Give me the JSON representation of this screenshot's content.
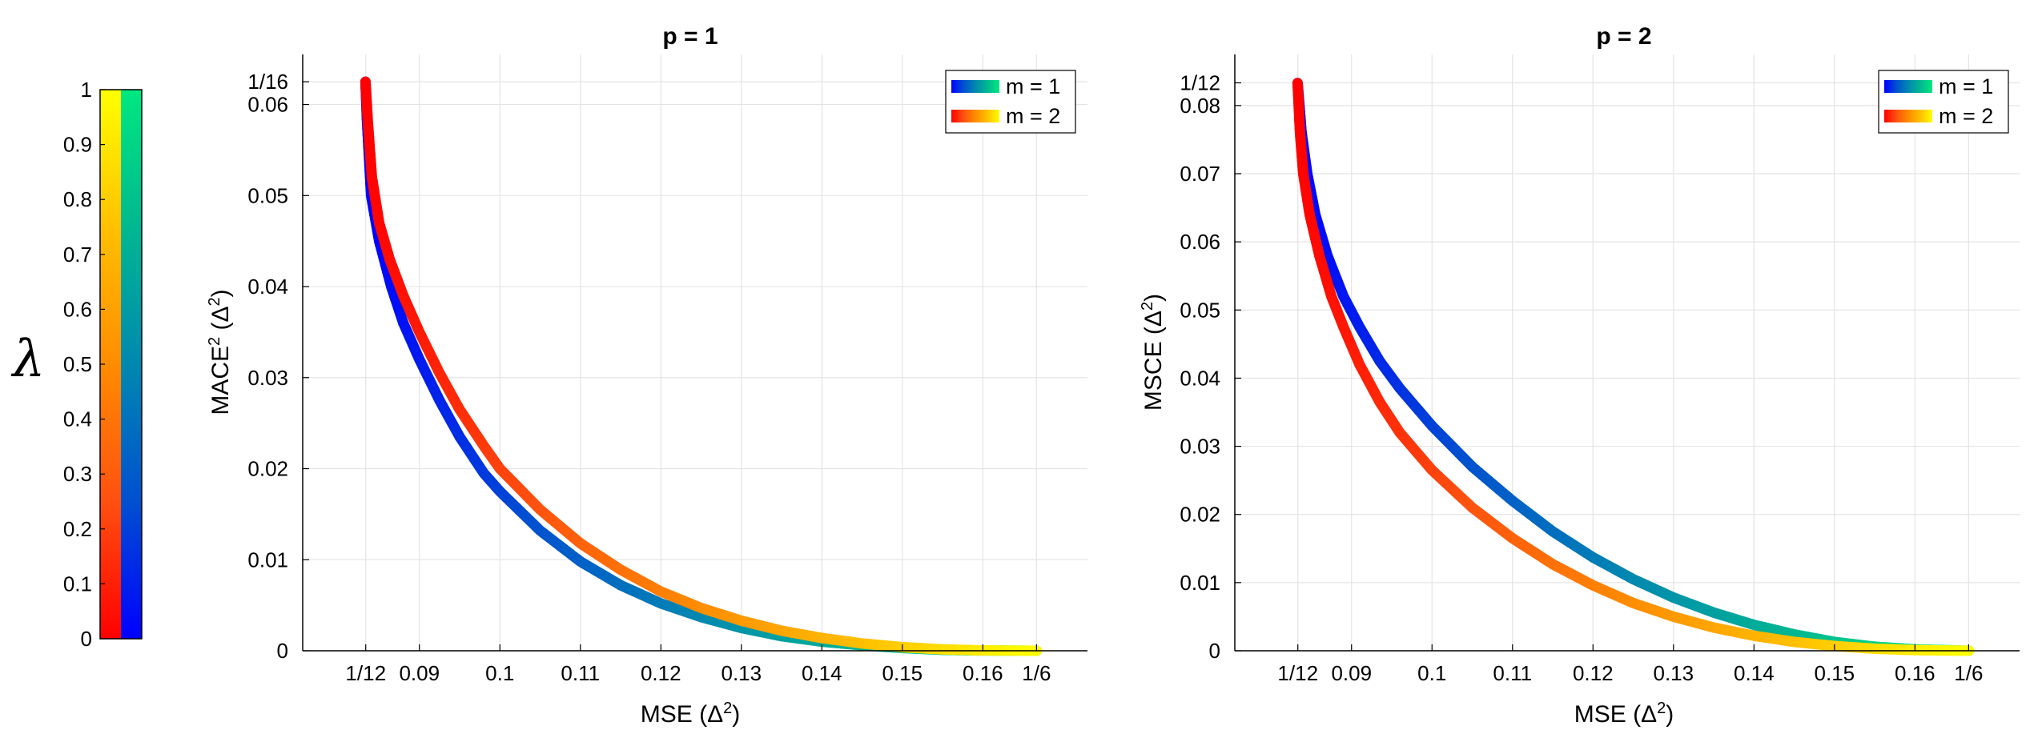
{
  "colorbar": {
    "label": "λ",
    "ticks": [
      "0",
      "0.1",
      "0.2",
      "0.3",
      "0.4",
      "0.5",
      "0.6",
      "0.7",
      "0.8",
      "0.9",
      "1"
    ],
    "colormaps": {
      "m1": [
        "#0000ff",
        "#0050d0",
        "#0088b0",
        "#00b890",
        "#00e880"
      ],
      "m2": [
        "#ff0000",
        "#ff5010",
        "#ff8c00",
        "#ffc000",
        "#ffff00"
      ]
    }
  },
  "chart_data": [
    {
      "type": "line",
      "title": "p = 1",
      "xlabel": "MSE (Δ²)",
      "ylabel": "MACE² (Δ²)",
      "xlim": [
        0.0755,
        0.173
      ],
      "ylim": [
        0,
        0.0655
      ],
      "xticks": [
        {
          "v": 0.083333,
          "label": "1/12"
        },
        {
          "v": 0.09,
          "label": "0.09"
        },
        {
          "v": 0.1,
          "label": "0.1"
        },
        {
          "v": 0.11,
          "label": "0.11"
        },
        {
          "v": 0.12,
          "label": "0.12"
        },
        {
          "v": 0.13,
          "label": "0.13"
        },
        {
          "v": 0.14,
          "label": "0.14"
        },
        {
          "v": 0.15,
          "label": "0.15"
        },
        {
          "v": 0.16,
          "label": "0.16"
        },
        {
          "v": 0.166667,
          "label": "1/6"
        }
      ],
      "yticks": [
        {
          "v": 0,
          "label": "0"
        },
        {
          "v": 0.01,
          "label": "0.01"
        },
        {
          "v": 0.02,
          "label": "0.02"
        },
        {
          "v": 0.03,
          "label": "0.03"
        },
        {
          "v": 0.04,
          "label": "0.04"
        },
        {
          "v": 0.05,
          "label": "0.05"
        },
        {
          "v": 0.06,
          "label": "0.06"
        },
        {
          "v": 0.0625,
          "label": "1/16"
        }
      ],
      "legend": {
        "position": "top-right",
        "entries": [
          "m = 1",
          "m = 2"
        ]
      },
      "series": [
        {
          "name": "m = 1",
          "colormap": "m1",
          "x": [
            0.0833,
            0.0835,
            0.084,
            0.085,
            0.0865,
            0.088,
            0.09,
            0.0925,
            0.095,
            0.098,
            0.1,
            0.105,
            0.11,
            0.115,
            0.12,
            0.125,
            0.13,
            0.135,
            0.14,
            0.145,
            0.15,
            0.155,
            0.16,
            0.1667
          ],
          "y": [
            0.0625,
            0.058,
            0.05,
            0.045,
            0.04,
            0.036,
            0.032,
            0.0275,
            0.0235,
            0.0195,
            0.0175,
            0.0132,
            0.0098,
            0.0072,
            0.0052,
            0.0037,
            0.0025,
            0.0016,
            0.001,
            0.0006,
            0.0003,
            0.0001,
            3e-05,
            0.0
          ]
        },
        {
          "name": "m = 2",
          "colormap": "m2",
          "x": [
            0.0833,
            0.0836,
            0.0841,
            0.085,
            0.0863,
            0.088,
            0.09,
            0.0925,
            0.095,
            0.098,
            0.1,
            0.105,
            0.11,
            0.115,
            0.12,
            0.125,
            0.13,
            0.135,
            0.14,
            0.145,
            0.15,
            0.155,
            0.16,
            0.1667
          ],
          "y": [
            0.0625,
            0.058,
            0.052,
            0.047,
            0.043,
            0.039,
            0.035,
            0.0305,
            0.0265,
            0.0225,
            0.02,
            0.0155,
            0.0118,
            0.0089,
            0.0065,
            0.0047,
            0.0033,
            0.0022,
            0.0014,
            0.0008,
            0.0004,
            0.00015,
            4e-05,
            0.0
          ]
        }
      ]
    },
    {
      "type": "line",
      "title": "p = 2",
      "xlabel": "MSE (Δ²)",
      "ylabel": "MSCE (Δ²)",
      "xlim": [
        0.0755,
        0.173
      ],
      "ylim": [
        0,
        0.0875
      ],
      "xticks": [
        {
          "v": 0.083333,
          "label": "1/12"
        },
        {
          "v": 0.09,
          "label": "0.09"
        },
        {
          "v": 0.1,
          "label": "0.1"
        },
        {
          "v": 0.11,
          "label": "0.11"
        },
        {
          "v": 0.12,
          "label": "0.12"
        },
        {
          "v": 0.13,
          "label": "0.13"
        },
        {
          "v": 0.14,
          "label": "0.14"
        },
        {
          "v": 0.15,
          "label": "0.15"
        },
        {
          "v": 0.16,
          "label": "0.16"
        },
        {
          "v": 0.166667,
          "label": "1/6"
        }
      ],
      "yticks": [
        {
          "v": 0,
          "label": "0"
        },
        {
          "v": 0.01,
          "label": "0.01"
        },
        {
          "v": 0.02,
          "label": "0.02"
        },
        {
          "v": 0.03,
          "label": "0.03"
        },
        {
          "v": 0.04,
          "label": "0.04"
        },
        {
          "v": 0.05,
          "label": "0.05"
        },
        {
          "v": 0.06,
          "label": "0.06"
        },
        {
          "v": 0.07,
          "label": "0.07"
        },
        {
          "v": 0.08,
          "label": "0.08"
        },
        {
          "v": 0.083333,
          "label": "1/12"
        }
      ],
      "legend": {
        "position": "top-right",
        "entries": [
          "m = 1",
          "m = 2"
        ]
      },
      "series": [
        {
          "name": "m = 1",
          "colormap": "m1",
          "x": [
            0.0833,
            0.0838,
            0.0845,
            0.0855,
            0.087,
            0.089,
            0.091,
            0.0935,
            0.096,
            0.1,
            0.105,
            0.11,
            0.115,
            0.12,
            0.125,
            0.13,
            0.135,
            0.14,
            0.145,
            0.15,
            0.155,
            0.16,
            0.1667
          ],
          "y": [
            0.0833,
            0.076,
            0.07,
            0.064,
            0.058,
            0.052,
            0.0475,
            0.0425,
            0.0385,
            0.033,
            0.027,
            0.022,
            0.0175,
            0.0137,
            0.0105,
            0.0078,
            0.0056,
            0.0038,
            0.0024,
            0.0013,
            0.0006,
            0.0002,
            0.0
          ]
        },
        {
          "name": "m = 2",
          "colormap": "m2",
          "x": [
            0.0833,
            0.0836,
            0.084,
            0.0848,
            0.086,
            0.0875,
            0.089,
            0.091,
            0.0935,
            0.096,
            0.1,
            0.105,
            0.11,
            0.115,
            0.12,
            0.125,
            0.13,
            0.135,
            0.14,
            0.145,
            0.15,
            0.155,
            0.16,
            0.1667
          ],
          "y": [
            0.0833,
            0.076,
            0.07,
            0.064,
            0.058,
            0.052,
            0.0475,
            0.042,
            0.0365,
            0.032,
            0.0265,
            0.021,
            0.0165,
            0.0127,
            0.0096,
            0.007,
            0.005,
            0.0034,
            0.0022,
            0.0013,
            0.0007,
            0.0003,
            0.0001,
            0.0
          ]
        }
      ]
    }
  ]
}
